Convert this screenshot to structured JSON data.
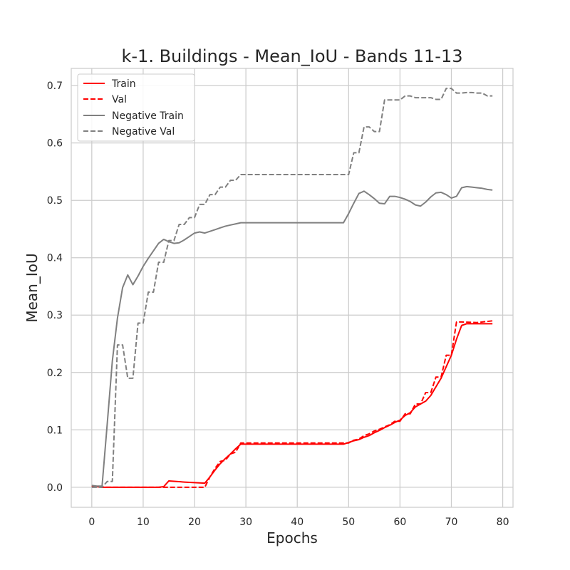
{
  "chart_data": {
    "type": "line",
    "title": "k-1. Buildings - Mean_IoU - Bands 11-13",
    "xlabel": "Epochs",
    "ylabel": "Mean_IoU",
    "xlim": [
      -4,
      82
    ],
    "ylim": [
      -0.035,
      0.73
    ],
    "xticks": [
      0,
      10,
      20,
      30,
      40,
      50,
      60,
      70,
      80
    ],
    "xtick_labels": [
      "0",
      "10",
      "20",
      "30",
      "40",
      "50",
      "60",
      "70",
      "80"
    ],
    "yticks": [
      0.0,
      0.1,
      0.2,
      0.3,
      0.4,
      0.5,
      0.6,
      0.7
    ],
    "ytick_labels": [
      "0.0",
      "0.1",
      "0.2",
      "0.3",
      "0.4",
      "0.5",
      "0.6",
      "0.7"
    ],
    "grid": true,
    "legend": "top-left",
    "series": [
      {
        "name": "Train",
        "color": "#ff0000",
        "dash": "solid",
        "points": [
          [
            0,
            0.002
          ],
          [
            1,
            0.001
          ],
          [
            2,
            0.0
          ],
          [
            5,
            0.0
          ],
          [
            10,
            0.0
          ],
          [
            13,
            0.0
          ],
          [
            14,
            0.001
          ],
          [
            15,
            0.011
          ],
          [
            18,
            0.009
          ],
          [
            22,
            0.007
          ],
          [
            23,
            0.018
          ],
          [
            24,
            0.03
          ],
          [
            25,
            0.041
          ],
          [
            26,
            0.05
          ],
          [
            27,
            0.058
          ],
          [
            28,
            0.067
          ],
          [
            29,
            0.075
          ],
          [
            48,
            0.075
          ],
          [
            49,
            0.075
          ],
          [
            50,
            0.078
          ],
          [
            51,
            0.081
          ],
          [
            52,
            0.083
          ],
          [
            53,
            0.087
          ],
          [
            54,
            0.09
          ],
          [
            55,
            0.095
          ],
          [
            56,
            0.099
          ],
          [
            57,
            0.104
          ],
          [
            58,
            0.108
          ],
          [
            59,
            0.113
          ],
          [
            60,
            0.117
          ],
          [
            61,
            0.125
          ],
          [
            62,
            0.13
          ],
          [
            63,
            0.14
          ],
          [
            64,
            0.145
          ],
          [
            65,
            0.15
          ],
          [
            66,
            0.16
          ],
          [
            67,
            0.175
          ],
          [
            68,
            0.19
          ],
          [
            69,
            0.21
          ],
          [
            70,
            0.23
          ],
          [
            71,
            0.258
          ],
          [
            72,
            0.282
          ],
          [
            73,
            0.285
          ],
          [
            78,
            0.285
          ]
        ]
      },
      {
        "name": "Val",
        "color": "#ff0000",
        "dash": "dashed",
        "points": [
          [
            0,
            0.002
          ],
          [
            1,
            0.001
          ],
          [
            2,
            0.0
          ],
          [
            5,
            0.0
          ],
          [
            14,
            0.0
          ],
          [
            15,
            0.0
          ],
          [
            22,
            0.0
          ],
          [
            23,
            0.018
          ],
          [
            24,
            0.033
          ],
          [
            25,
            0.045
          ],
          [
            26,
            0.047
          ],
          [
            27,
            0.058
          ],
          [
            28,
            0.061
          ],
          [
            29,
            0.077
          ],
          [
            49,
            0.077
          ],
          [
            50,
            0.077
          ],
          [
            51,
            0.082
          ],
          [
            52,
            0.084
          ],
          [
            53,
            0.09
          ],
          [
            54,
            0.093
          ],
          [
            55,
            0.098
          ],
          [
            56,
            0.101
          ],
          [
            57,
            0.105
          ],
          [
            58,
            0.109
          ],
          [
            59,
            0.115
          ],
          [
            60,
            0.115
          ],
          [
            61,
            0.128
          ],
          [
            62,
            0.128
          ],
          [
            63,
            0.145
          ],
          [
            64,
            0.145
          ],
          [
            65,
            0.165
          ],
          [
            66,
            0.165
          ],
          [
            67,
            0.192
          ],
          [
            68,
            0.192
          ],
          [
            69,
            0.23
          ],
          [
            70,
            0.23
          ],
          [
            71,
            0.288
          ],
          [
            72,
            0.288
          ],
          [
            75,
            0.287
          ],
          [
            78,
            0.29
          ]
        ]
      },
      {
        "name": "Negative Train",
        "color": "#808080",
        "dash": "solid",
        "points": [
          [
            0,
            0.003
          ],
          [
            1,
            0.002
          ],
          [
            2,
            0.002
          ],
          [
            3,
            0.11
          ],
          [
            4,
            0.22
          ],
          [
            5,
            0.295
          ],
          [
            6,
            0.348
          ],
          [
            7,
            0.37
          ],
          [
            8,
            0.353
          ],
          [
            9,
            0.368
          ],
          [
            10,
            0.385
          ],
          [
            11,
            0.399
          ],
          [
            12,
            0.412
          ],
          [
            13,
            0.425
          ],
          [
            14,
            0.432
          ],
          [
            15,
            0.428
          ],
          [
            16,
            0.425
          ],
          [
            17,
            0.426
          ],
          [
            18,
            0.431
          ],
          [
            19,
            0.437
          ],
          [
            20,
            0.443
          ],
          [
            21,
            0.445
          ],
          [
            22,
            0.443
          ],
          [
            23,
            0.446
          ],
          [
            24,
            0.449
          ],
          [
            25,
            0.452
          ],
          [
            26,
            0.455
          ],
          [
            27,
            0.457
          ],
          [
            28,
            0.459
          ],
          [
            29,
            0.461
          ],
          [
            49,
            0.461
          ],
          [
            50,
            0.477
          ],
          [
            51,
            0.495
          ],
          [
            52,
            0.512
          ],
          [
            53,
            0.516
          ],
          [
            54,
            0.51
          ],
          [
            55,
            0.503
          ],
          [
            56,
            0.495
          ],
          [
            57,
            0.494
          ],
          [
            58,
            0.507
          ],
          [
            59,
            0.507
          ],
          [
            60,
            0.505
          ],
          [
            61,
            0.502
          ],
          [
            62,
            0.498
          ],
          [
            63,
            0.492
          ],
          [
            64,
            0.49
          ],
          [
            65,
            0.497
          ],
          [
            66,
            0.506
          ],
          [
            67,
            0.513
          ],
          [
            68,
            0.514
          ],
          [
            69,
            0.51
          ],
          [
            70,
            0.504
          ],
          [
            71,
            0.507
          ],
          [
            72,
            0.522
          ],
          [
            73,
            0.524
          ],
          [
            74,
            0.523
          ],
          [
            75,
            0.522
          ],
          [
            76,
            0.521
          ],
          [
            77,
            0.519
          ],
          [
            78,
            0.518
          ]
        ]
      },
      {
        "name": "Negative Val",
        "color": "#808080",
        "dash": "dashed",
        "points": [
          [
            0,
            0.0
          ],
          [
            2,
            0.0
          ],
          [
            3,
            0.01
          ],
          [
            4,
            0.01
          ],
          [
            5,
            0.248
          ],
          [
            6,
            0.248
          ],
          [
            7,
            0.19
          ],
          [
            8,
            0.19
          ],
          [
            9,
            0.286
          ],
          [
            10,
            0.286
          ],
          [
            11,
            0.34
          ],
          [
            12,
            0.34
          ],
          [
            13,
            0.392
          ],
          [
            14,
            0.392
          ],
          [
            15,
            0.43
          ],
          [
            16,
            0.43
          ],
          [
            17,
            0.458
          ],
          [
            18,
            0.458
          ],
          [
            19,
            0.47
          ],
          [
            20,
            0.47
          ],
          [
            21,
            0.493
          ],
          [
            22,
            0.493
          ],
          [
            23,
            0.51
          ],
          [
            24,
            0.51
          ],
          [
            25,
            0.523
          ],
          [
            26,
            0.523
          ],
          [
            27,
            0.535
          ],
          [
            28,
            0.535
          ],
          [
            29,
            0.545
          ],
          [
            49,
            0.545
          ],
          [
            50,
            0.545
          ],
          [
            51,
            0.583
          ],
          [
            52,
            0.583
          ],
          [
            53,
            0.628
          ],
          [
            54,
            0.628
          ],
          [
            55,
            0.62
          ],
          [
            56,
            0.62
          ],
          [
            57,
            0.675
          ],
          [
            58,
            0.675
          ],
          [
            60,
            0.675
          ],
          [
            61,
            0.682
          ],
          [
            62,
            0.682
          ],
          [
            63,
            0.679
          ],
          [
            64,
            0.679
          ],
          [
            66,
            0.679
          ],
          [
            67,
            0.676
          ],
          [
            68,
            0.676
          ],
          [
            69,
            0.695
          ],
          [
            70,
            0.695
          ],
          [
            71,
            0.687
          ],
          [
            72,
            0.687
          ],
          [
            73,
            0.688
          ],
          [
            74,
            0.688
          ],
          [
            75,
            0.687
          ],
          [
            76,
            0.687
          ],
          [
            77,
            0.682
          ],
          [
            78,
            0.682
          ]
        ]
      }
    ]
  }
}
